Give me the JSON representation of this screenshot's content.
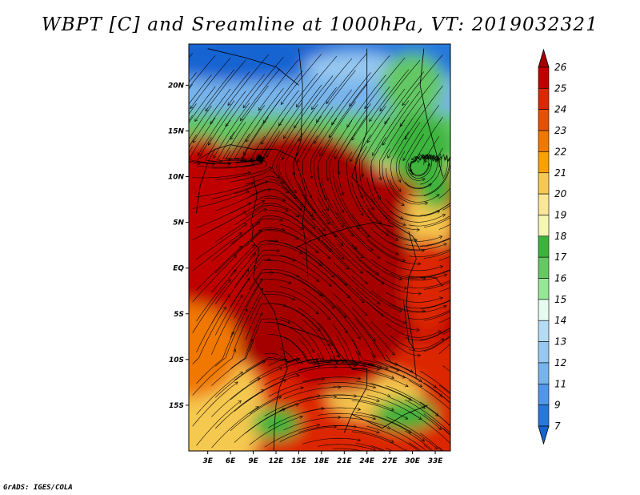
{
  "title": "WBPT [C] and Sreamline at 1000hPa, VT: 2019032321",
  "footer": "GrADS: IGES/COLA",
  "map": {
    "lat_ticks": [
      "20N",
      "15N",
      "10N",
      "5N",
      "EQ",
      "5S",
      "10S",
      "15S"
    ],
    "lat_values": [
      20,
      15,
      10,
      5,
      0,
      -5,
      -10,
      -15
    ],
    "lon_ticks": [
      "3E",
      "6E",
      "9E",
      "12E",
      "15E",
      "18E",
      "21E",
      "24E",
      "27E",
      "30E",
      "33E"
    ],
    "lon_values": [
      3,
      6,
      9,
      12,
      15,
      18,
      21,
      24,
      27,
      30,
      33
    ],
    "lon_range": [
      0.5,
      35
    ],
    "lat_range": [
      -20,
      24.5
    ]
  },
  "colorbar": {
    "labels": [
      "26",
      "25",
      "24",
      "23",
      "22",
      "21",
      "20",
      "19",
      "18",
      "17",
      "16",
      "15",
      "14",
      "13",
      "12",
      "11",
      "9",
      "7"
    ],
    "colors": [
      "#a50000",
      "#c00000",
      "#dc2800",
      "#e65000",
      "#f07800",
      "#faa000",
      "#f5c850",
      "#fae696",
      "#f5f5b4",
      "#3cb43c",
      "#64c864",
      "#96e696",
      "#e6faf0",
      "#b4dcf5",
      "#96c8f0",
      "#78b4eb",
      "#5096eb",
      "#2878dc",
      "#1464d2"
    ]
  },
  "colors": {
    "background": "#ffffff",
    "streamline": "#000000",
    "border": "#000000"
  }
}
